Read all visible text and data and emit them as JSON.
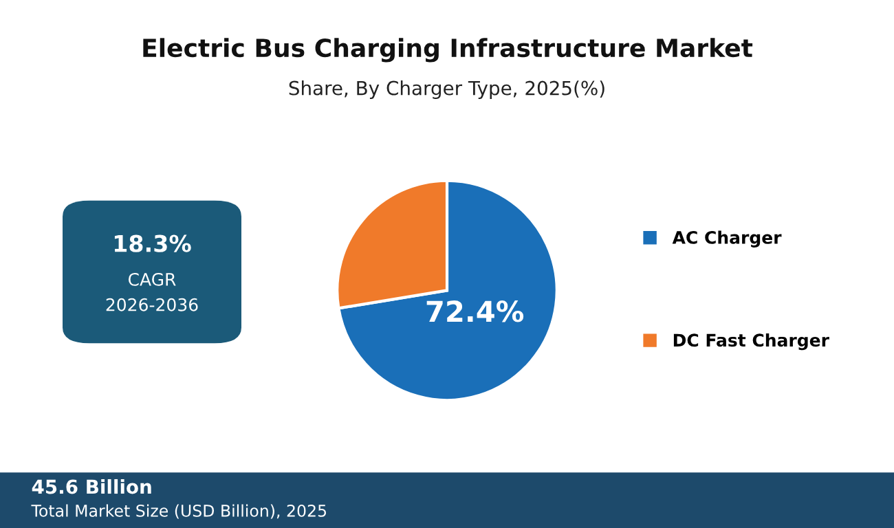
{
  "chart_data": {
    "type": "pie",
    "title": "Electric Bus Charging Infrastructure Market",
    "subtitle": "Share, By Charger Type, 2025(%)",
    "categories": [
      "AC Charger",
      "DC Fast Charger"
    ],
    "values": [
      72.4,
      27.6
    ],
    "colors": [
      "#1a6fb8",
      "#f07a2a"
    ],
    "value_labels": [
      "72.4%",
      null
    ],
    "legend": "right",
    "annotations": [
      "18.3%",
      "CAGR",
      "2026-2036",
      "45.6 Billion",
      "Total Market Size (USD Billion), 2025"
    ]
  }
}
